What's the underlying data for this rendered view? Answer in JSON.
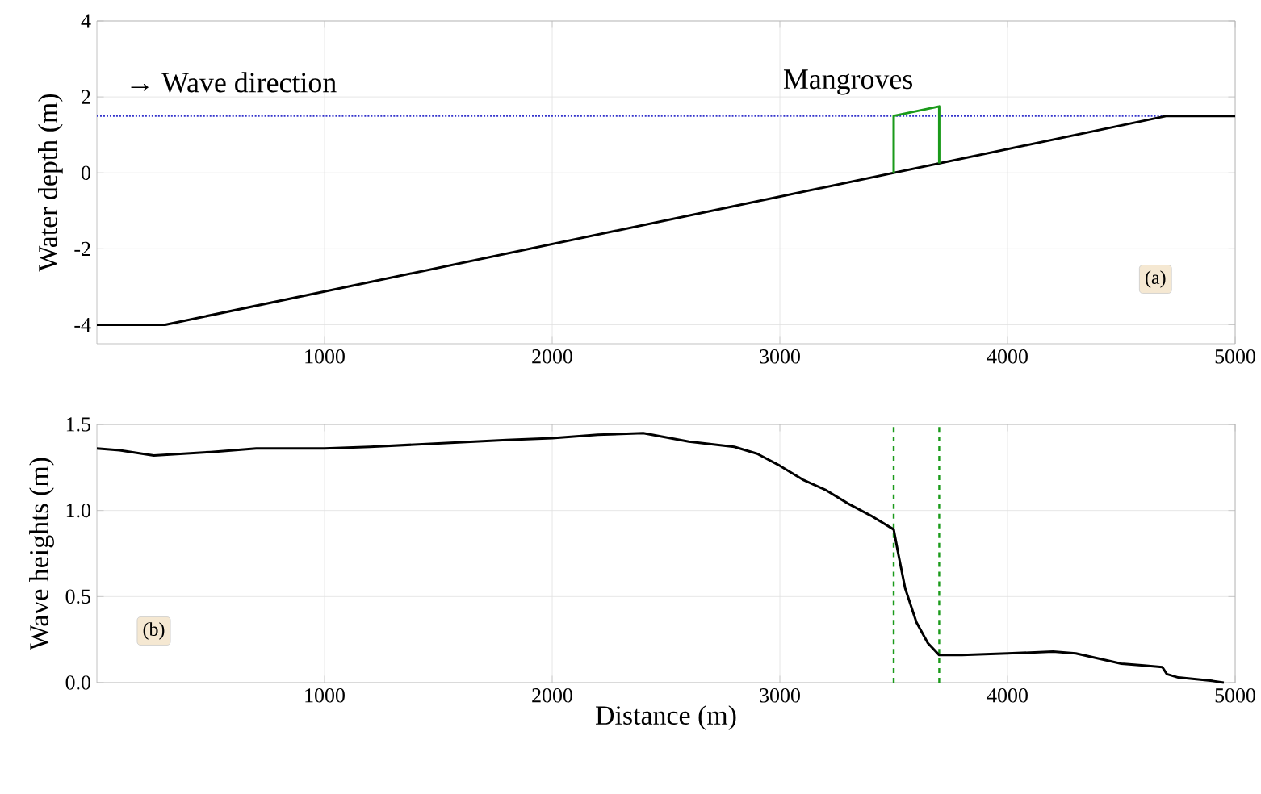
{
  "chart_data": [
    {
      "type": "line",
      "ylabel": "Water depth (m)",
      "xlim": [
        0,
        5000
      ],
      "ylim": [
        -4.5,
        4
      ],
      "xticks": [
        1000,
        2000,
        3000,
        4000,
        5000
      ],
      "yticks": [
        -4,
        -2,
        0,
        2,
        4
      ],
      "grid": true,
      "line_style": "solid",
      "series": [
        {
          "color": "#000000",
          "x": [
            0,
            300,
            4700,
            5000
          ],
          "values": [
            -4,
            -4,
            1.5,
            1.5
          ]
        },
        {
          "color": "#1a9a1a",
          "x": [
            3500,
            3500,
            3700,
            3700
          ],
          "values": [
            0,
            1.5,
            1.75,
            0.25
          ]
        }
      ],
      "ref_lines": [
        {
          "axis": "y",
          "value": 1.5,
          "color": "#3333cc",
          "line_style": "dotted"
        }
      ],
      "annotations": [
        "→ Wave direction",
        "Mangroves",
        "(a)"
      ]
    },
    {
      "type": "line",
      "xlabel": "Distance (m)",
      "ylabel": "Wave heights (m)",
      "xlim": [
        0,
        5000
      ],
      "ylim": [
        0,
        1.5
      ],
      "xticks": [
        1000,
        2000,
        3000,
        4000,
        5000
      ],
      "yticks": [
        {
          "value": 0,
          "label": "0.0"
        },
        {
          "value": 0.5,
          "label": "0.5"
        },
        {
          "value": 1,
          "label": "1.0"
        },
        {
          "value": 1.5,
          "label": "1.5"
        }
      ],
      "grid": true,
      "line_style": "solid",
      "series": [
        {
          "color": "#000000",
          "x": [
            0,
            100,
            250,
            500,
            700,
            1000,
            1200,
            1500,
            1800,
            2000,
            2200,
            2400,
            2600,
            2800,
            2900,
            3000,
            3100,
            3200,
            3300,
            3400,
            3500,
            3520,
            3550,
            3600,
            3650,
            3700,
            3800,
            4000,
            4200,
            4300,
            4400,
            4500,
            4600,
            4680,
            4700,
            4750,
            4900,
            4950
          ],
          "values": [
            1.36,
            1.35,
            1.32,
            1.34,
            1.36,
            1.36,
            1.37,
            1.39,
            1.41,
            1.42,
            1.44,
            1.45,
            1.4,
            1.37,
            1.33,
            1.26,
            1.18,
            1.12,
            1.04,
            0.97,
            0.89,
            0.75,
            0.55,
            0.35,
            0.23,
            0.16,
            0.16,
            0.17,
            0.18,
            0.17,
            0.14,
            0.11,
            0.1,
            0.09,
            0.05,
            0.03,
            0.01,
            0.0
          ]
        }
      ],
      "ref_lines": [
        {
          "axis": "x",
          "value": 3500,
          "color": "#1a9a1a",
          "line_style": "dashed"
        },
        {
          "axis": "x",
          "value": 3700,
          "color": "#1a9a1a",
          "line_style": "dashed"
        }
      ],
      "annotations": [
        "(b)"
      ]
    }
  ]
}
